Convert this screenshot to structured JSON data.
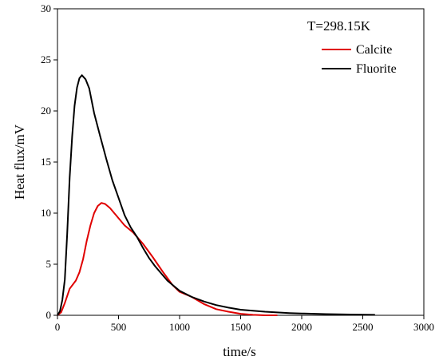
{
  "chart_data": {
    "type": "line",
    "title": "",
    "xlabel": "time/s",
    "ylabel": "Heat flux/mV",
    "xlim": [
      0,
      3000
    ],
    "ylim": [
      0,
      30
    ],
    "xticks": [
      0,
      500,
      1000,
      1500,
      2000,
      2500,
      3000
    ],
    "yticks": [
      0,
      5,
      10,
      15,
      20,
      25,
      30
    ],
    "grid": false,
    "annotation": "T=298.15K",
    "legend_position": "top-right",
    "series": [
      {
        "name": "Calcite",
        "color": "#e00000",
        "points": [
          [
            0,
            0
          ],
          [
            30,
            0.3
          ],
          [
            60,
            1.2
          ],
          [
            100,
            2.6
          ],
          [
            150,
            3.4
          ],
          [
            180,
            4.2
          ],
          [
            210,
            5.5
          ],
          [
            240,
            7.3
          ],
          [
            270,
            8.8
          ],
          [
            300,
            10.0
          ],
          [
            330,
            10.7
          ],
          [
            360,
            11.0
          ],
          [
            390,
            10.9
          ],
          [
            430,
            10.5
          ],
          [
            480,
            9.8
          ],
          [
            550,
            8.8
          ],
          [
            620,
            8.1
          ],
          [
            700,
            7.0
          ],
          [
            780,
            5.7
          ],
          [
            860,
            4.3
          ],
          [
            940,
            3.0
          ],
          [
            1000,
            2.3
          ],
          [
            1100,
            1.8
          ],
          [
            1200,
            1.1
          ],
          [
            1300,
            0.6
          ],
          [
            1400,
            0.35
          ],
          [
            1500,
            0.15
          ],
          [
            1600,
            0.05
          ],
          [
            1700,
            0.0
          ],
          [
            1800,
            0.0
          ]
        ]
      },
      {
        "name": "Fluorite",
        "color": "#000000",
        "points": [
          [
            0,
            0
          ],
          [
            20,
            0.4
          ],
          [
            40,
            1.5
          ],
          [
            60,
            3.5
          ],
          [
            80,
            8.0
          ],
          [
            100,
            13.5
          ],
          [
            120,
            17.5
          ],
          [
            140,
            20.5
          ],
          [
            160,
            22.3
          ],
          [
            180,
            23.2
          ],
          [
            200,
            23.5
          ],
          [
            230,
            23.1
          ],
          [
            260,
            22.2
          ],
          [
            300,
            19.8
          ],
          [
            350,
            17.5
          ],
          [
            400,
            15.3
          ],
          [
            450,
            13.2
          ],
          [
            500,
            11.5
          ],
          [
            550,
            9.8
          ],
          [
            600,
            8.6
          ],
          [
            650,
            7.7
          ],
          [
            700,
            6.6
          ],
          [
            750,
            5.6
          ],
          [
            800,
            4.8
          ],
          [
            850,
            4.1
          ],
          [
            900,
            3.4
          ],
          [
            1000,
            2.4
          ],
          [
            1100,
            1.8
          ],
          [
            1200,
            1.35
          ],
          [
            1300,
            1.0
          ],
          [
            1400,
            0.75
          ],
          [
            1500,
            0.55
          ],
          [
            1600,
            0.45
          ],
          [
            1700,
            0.35
          ],
          [
            1800,
            0.28
          ],
          [
            1900,
            0.22
          ],
          [
            2000,
            0.18
          ],
          [
            2200,
            0.12
          ],
          [
            2400,
            0.08
          ],
          [
            2600,
            0.05
          ]
        ]
      }
    ]
  }
}
